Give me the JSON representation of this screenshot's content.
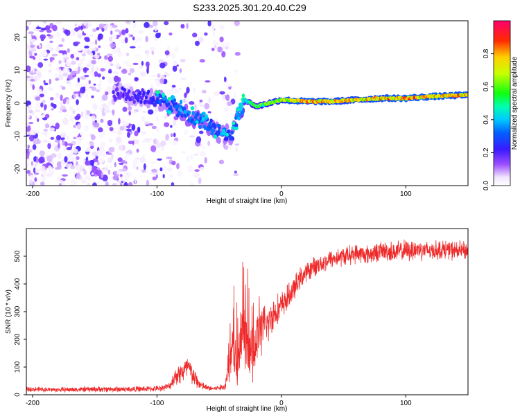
{
  "title": "S233.2025.301.20.40.C29",
  "chart_data": [
    {
      "type": "heatmap",
      "xlabel": "Height of straight line (km)",
      "ylabel": "Frequency (Hz)",
      "xlim": [
        -205,
        150
      ],
      "ylim": [
        -25,
        25
      ],
      "xticks": [
        -200,
        -100,
        0,
        100
      ],
      "yticks": [
        -20,
        -10,
        0,
        10,
        20
      ],
      "colorbar": {
        "label": "Normalized spectral amplitude",
        "ticks": [
          0.0,
          0.2,
          0.4,
          0.6,
          0.8
        ],
        "tick_labels": [
          "0.0",
          "0.2",
          "0.4",
          "0.6",
          "0.8"
        ],
        "range": [
          0,
          1
        ],
        "colormap": "rainbow (white-violet-blue-cyan-green-yellow-red-magenta)"
      },
      "description_series": [
        {
          "name": "noise band",
          "x_range": [
            -205,
            -35
          ],
          "freq_range": [
            -25,
            25
          ],
          "amplitude": "0.0-0.2"
        },
        {
          "name": "carrier line",
          "x": [
            -135,
            -110,
            -90,
            -75,
            -60,
            -50,
            -40,
            -30,
            -20,
            0,
            20,
            40,
            60,
            80,
            100,
            120,
            150
          ],
          "freq": [
            3,
            2,
            0,
            -4,
            -6,
            -9,
            -10,
            1,
            -1,
            1,
            0.5,
            0.5,
            1,
            1.5,
            1.5,
            2,
            2.5
          ],
          "amplitude": [
            0.2,
            0.25,
            0.3,
            0.35,
            0.35,
            0.3,
            0.3,
            0.5,
            0.6,
            0.75,
            0.9,
            0.85,
            0.8,
            0.85,
            0.9,
            0.9,
            0.85
          ]
        }
      ]
    },
    {
      "type": "line",
      "xlabel": "Height of straight line (km)",
      "ylabel": "SNR (10 * v/v)",
      "xlim": [
        -205,
        150
      ],
      "ylim": [
        0,
        600
      ],
      "xticks": [
        -200,
        -100,
        0,
        100
      ],
      "yticks": [
        0,
        100,
        200,
        300,
        400,
        500
      ],
      "series": [
        {
          "name": "SNR",
          "color": "#ee2a2a",
          "x": [
            -205,
            -180,
            -150,
            -120,
            -100,
            -90,
            -85,
            -80,
            -75,
            -70,
            -65,
            -60,
            -55,
            -50,
            -45,
            -40,
            -37,
            -35,
            -32,
            -30,
            -27,
            -25,
            -22,
            -20,
            -17,
            -15,
            -12,
            -10,
            -7,
            -5,
            -2,
            0,
            5,
            10,
            15,
            20,
            25,
            30,
            40,
            50,
            60,
            70,
            80,
            90,
            100,
            110,
            120,
            130,
            140,
            150
          ],
          "y": [
            20,
            18,
            20,
            20,
            22,
            30,
            70,
            80,
            100,
            60,
            35,
            25,
            22,
            25,
            30,
            150,
            140,
            100,
            180,
            200,
            160,
            140,
            150,
            200,
            230,
            240,
            250,
            260,
            290,
            300,
            310,
            320,
            350,
            380,
            420,
            440,
            460,
            470,
            490,
            500,
            510,
            505,
            520,
            515,
            520,
            525,
            520,
            525,
            520,
            520
          ],
          "noise_amplitude": [
            10,
            10,
            12,
            12,
            12,
            15,
            40,
            50,
            55,
            40,
            20,
            12,
            10,
            12,
            15,
            110,
            120,
            100,
            150,
            200,
            140,
            120,
            110,
            130,
            110,
            100,
            90,
            80,
            75,
            70,
            65,
            60,
            55,
            50,
            45,
            40,
            40,
            40,
            40,
            40,
            40,
            40,
            40,
            45,
            45,
            45,
            40,
            40,
            40,
            40
          ]
        }
      ]
    }
  ]
}
